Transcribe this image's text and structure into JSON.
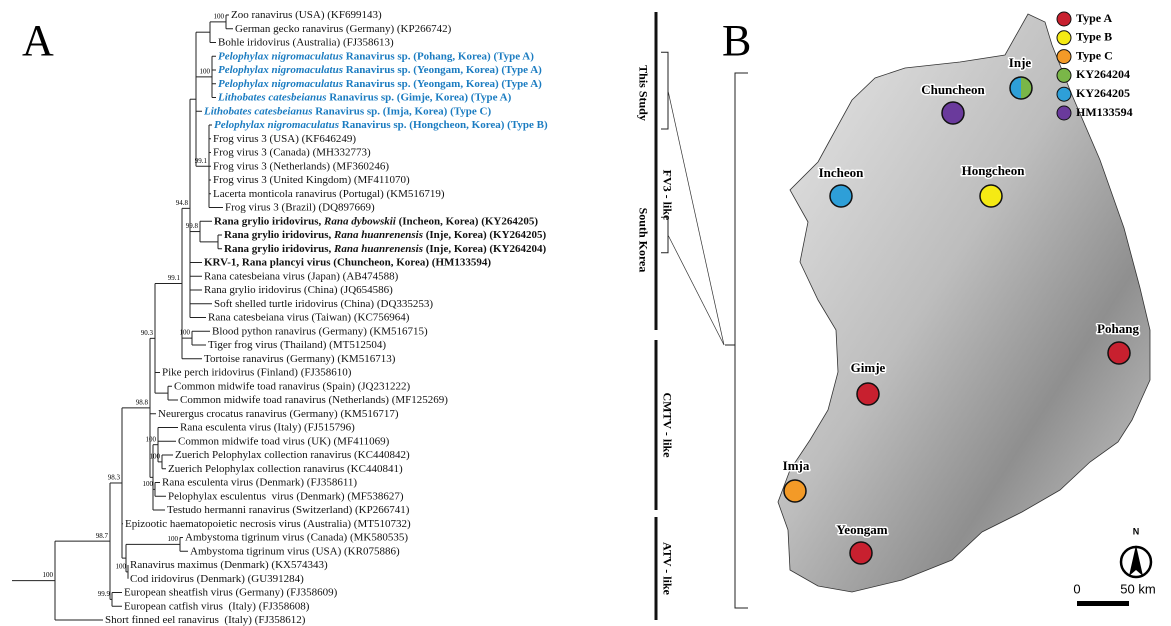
{
  "panel_a": {
    "label": "A",
    "leaves": [
      {
        "parts": [
          "Zoo ranavirus (USA) (KF699143)"
        ]
      },
      {
        "parts": [
          "German gecko ranavirus (Germany) (KP266742)"
        ]
      },
      {
        "parts": [
          "Bohle iridovirus (Australia) (FJ358613)"
        ]
      },
      {
        "parts": [
          "Pelophylax nigromaculatus",
          " Ranavirus sp. (Pohang, Korea) (Type A)"
        ],
        "italic": 0,
        "bold": true,
        "color": "#1b7cc1"
      },
      {
        "parts": [
          "Pelophylax nigromaculatus",
          " Ranavirus sp. (Yeongam, Korea) (Type A)"
        ],
        "italic": 0,
        "bold": true,
        "color": "#1b7cc1"
      },
      {
        "parts": [
          "Pelophylax nigromaculatus",
          " Ranavirus sp. (Yeongam, Korea) (Type A)"
        ],
        "italic": 0,
        "bold": true,
        "color": "#1b7cc1"
      },
      {
        "parts": [
          "Lithobates catesbeianus",
          " Ranavirus sp. (Gimje, Korea) (Type A)"
        ],
        "italic": 0,
        "bold": true,
        "color": "#1b7cc1"
      },
      {
        "parts": [
          "Lithobates catesbeianus",
          " Ranavirus sp. (Imja, Korea) (Type C)"
        ],
        "italic": 0,
        "bold": true,
        "color": "#1b7cc1"
      },
      {
        "parts": [
          "Pelophylax nigromaculatus",
          " Ranavirus sp. (Hongcheon, Korea) (Type B)"
        ],
        "italic": 0,
        "bold": true,
        "color": "#1b7cc1"
      },
      {
        "parts": [
          "Frog virus 3 (USA) (KF646249)"
        ]
      },
      {
        "parts": [
          "Frog virus 3 (Canada) (MH332773)"
        ]
      },
      {
        "parts": [
          "Frog virus 3 (Netherlands) (MF360246)"
        ]
      },
      {
        "parts": [
          "Frog virus 3 (United Kingdom) (MF411070)"
        ]
      },
      {
        "parts": [
          "Lacerta monticola ranavirus (Portugal) (KM516719)"
        ]
      },
      {
        "parts": [
          "Frog virus 3 (Brazil) (DQ897669)"
        ]
      },
      {
        "parts": [
          "Rana grylio iridovirus, ",
          "Rana dybowskii",
          " (Incheon, Korea) (KY264205)"
        ],
        "italic": 1,
        "bold": true
      },
      {
        "parts": [
          "Rana grylio iridovirus, ",
          "Rana huanrenensis",
          " (Inje, Korea) (KY264205)"
        ],
        "italic": 1,
        "bold": true
      },
      {
        "parts": [
          "Rana grylio iridovirus, ",
          "Rana huanrenensis",
          " (Inje, Korea) (KY264204)"
        ],
        "italic": 1,
        "bold": true
      },
      {
        "parts": [
          "KRV-1, Rana plancyi virus (Chuncheon, Korea) (HM133594)"
        ],
        "bold": true
      },
      {
        "parts": [
          "Rana catesbeiana virus (Japan) (AB474588)"
        ]
      },
      {
        "parts": [
          "Rana grylio iridovirus (China) (JQ654586)"
        ]
      },
      {
        "parts": [
          "Soft shelled turtle iridovirus (China) (DQ335253)"
        ]
      },
      {
        "parts": [
          "Rana catesbeiana virus (Taiwan) (KC756964)"
        ]
      },
      {
        "parts": [
          "Blood python ranavirus (Germany) (KM516715)"
        ]
      },
      {
        "parts": [
          "Tiger frog virus (Thailand) (MT512504)"
        ]
      },
      {
        "parts": [
          "Tortoise ranavirus (Germany) (KM516713)"
        ]
      },
      {
        "parts": [
          "Pike perch iridovirus (Finland) (FJ358610)"
        ]
      },
      {
        "parts": [
          "Common midwife toad ranavirus (Spain) (JQ231222)"
        ]
      },
      {
        "parts": [
          "Common midwife toad ranavirus (Netherlands) (MF125269)"
        ]
      },
      {
        "parts": [
          "Neurergus crocatus ranavirus (Germany) (KM516717)"
        ]
      },
      {
        "parts": [
          "Rana esculenta virus (Italy) (FJ515796)"
        ]
      },
      {
        "parts": [
          "Common midwife toad virus (UK) (MF411069)"
        ]
      },
      {
        "parts": [
          "Zuerich Pelophylax collection ranavirus (KC440842)"
        ]
      },
      {
        "parts": [
          "Zuerich Pelophylax collection ranavirus (KC440841)"
        ]
      },
      {
        "parts": [
          "Rana esculenta virus (Denmark) (FJ358611)"
        ]
      },
      {
        "parts": [
          "Pelophylax esculentus  virus (Denmark) (MF538627)"
        ]
      },
      {
        "parts": [
          "Testudo hermanni ranavirus (Switzerland) (KP266741)"
        ]
      },
      {
        "parts": [
          "Epizootic haematopoietic necrosis virus (Australia) (MT510732)"
        ]
      },
      {
        "parts": [
          "Ambystoma tigrinum virus (Canada) (MK580535)"
        ]
      },
      {
        "parts": [
          "Ambystoma tigrinum virus (USA) (KR075886)"
        ]
      },
      {
        "parts": [
          "Ranavirus maximus (Denmark) (KX574343)"
        ]
      },
      {
        "parts": [
          "Cod iridovirus (Denmark) (GU391284)"
        ]
      },
      {
        "parts": [
          "European sheatfish virus (Germany) (FJ358609)"
        ]
      },
      {
        "parts": [
          "European catfish virus  (Italy) (FJ358608)"
        ]
      },
      {
        "parts": [
          "Short finned eel ranavirus  (Italy) (FJ358612)"
        ]
      }
    ],
    "bootstrap": [
      "100",
      "100",
      "99.1",
      "94.8",
      "99.8",
      "99.1",
      "100",
      "90.3",
      "100",
      "100",
      "100",
      "98.8",
      "98.3",
      "100",
      "100",
      "98.7",
      "99.9",
      "100"
    ],
    "clades": [
      "FV3 - like",
      "CMTV - like",
      "ATV - like"
    ],
    "brackets": [
      "This Study",
      "South Korea"
    ]
  },
  "panel_b": {
    "label": "B",
    "legend": [
      {
        "label": "Type A",
        "color": "#c8202f"
      },
      {
        "label": "Type B",
        "color": "#f5ea14"
      },
      {
        "label": "Type C",
        "color": "#f39a27"
      },
      {
        "label": "KY264204",
        "color": "#7ab648"
      },
      {
        "label": "KY264205",
        "color": "#2e9fd8"
      },
      {
        "label": "HM133594",
        "color": "#6a3a9c"
      }
    ],
    "sites": [
      {
        "name": "Inje",
        "colors": [
          "#2e9fd8",
          "#7ab648"
        ]
      },
      {
        "name": "Chuncheon",
        "colors": [
          "#6a3a9c"
        ]
      },
      {
        "name": "Incheon",
        "colors": [
          "#2e9fd8"
        ]
      },
      {
        "name": "Hongcheon",
        "colors": [
          "#f5ea14"
        ]
      },
      {
        "name": "Pohang",
        "colors": [
          "#c8202f"
        ]
      },
      {
        "name": "Gimje",
        "colors": [
          "#c8202f"
        ]
      },
      {
        "name": "Imja",
        "colors": [
          "#f39a27"
        ]
      },
      {
        "name": "Yeongam",
        "colors": [
          "#c8202f"
        ]
      }
    ],
    "north": "N",
    "scale": {
      "start": "0",
      "end": "50 km"
    }
  }
}
